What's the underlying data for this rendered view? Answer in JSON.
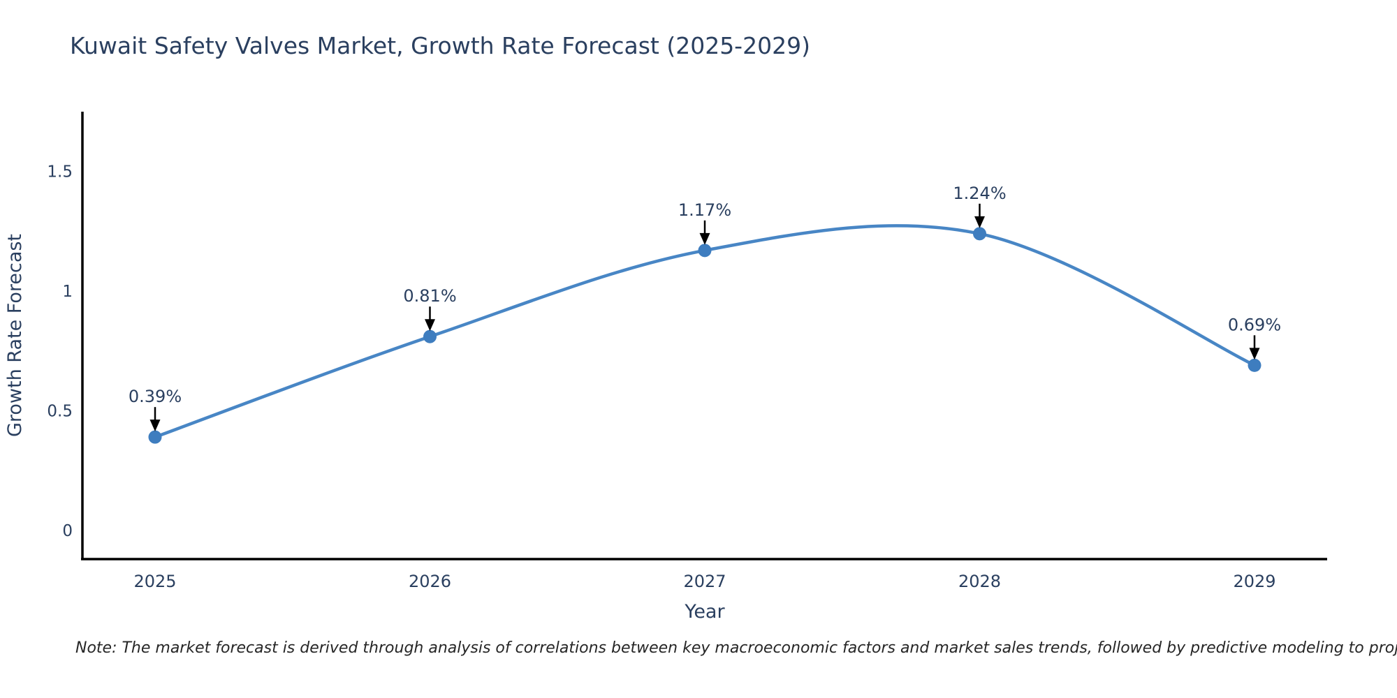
{
  "page": {
    "note": "Note: The market forecast is derived through analysis of correlations between key macroeconomic factors and market sales trends, followed by predictive modeling to project future sales"
  },
  "chart_data": {
    "type": "line",
    "title": "Kuwait Safety Valves Market, Growth Rate Forecast (2025-2029)",
    "categories": [
      "2025",
      "2026",
      "2027",
      "2028",
      "2029"
    ],
    "values": [
      0.39,
      0.81,
      1.17,
      1.24,
      0.69
    ],
    "point_labels": [
      "0.39%",
      "0.81%",
      "1.17%",
      "1.24%",
      "0.69%"
    ],
    "xlabel": "Year",
    "ylabel": "Growth Rate Forecast",
    "yticks": [
      0,
      0.5,
      1,
      1.5
    ],
    "ytick_labels": [
      "0",
      "0.5",
      "1",
      "1.5"
    ],
    "ylim": [
      -0.12,
      1.75
    ],
    "line_shape": "spline",
    "grid": false,
    "legend": "none",
    "colors": {
      "line": "#4886C5",
      "marker": "#3E7DBF",
      "axis": "#000000",
      "text": "#2a3f5f",
      "annotation_text": "#2a3f5f",
      "annotation_arrow": "#000000",
      "background": "#ffffff"
    }
  }
}
